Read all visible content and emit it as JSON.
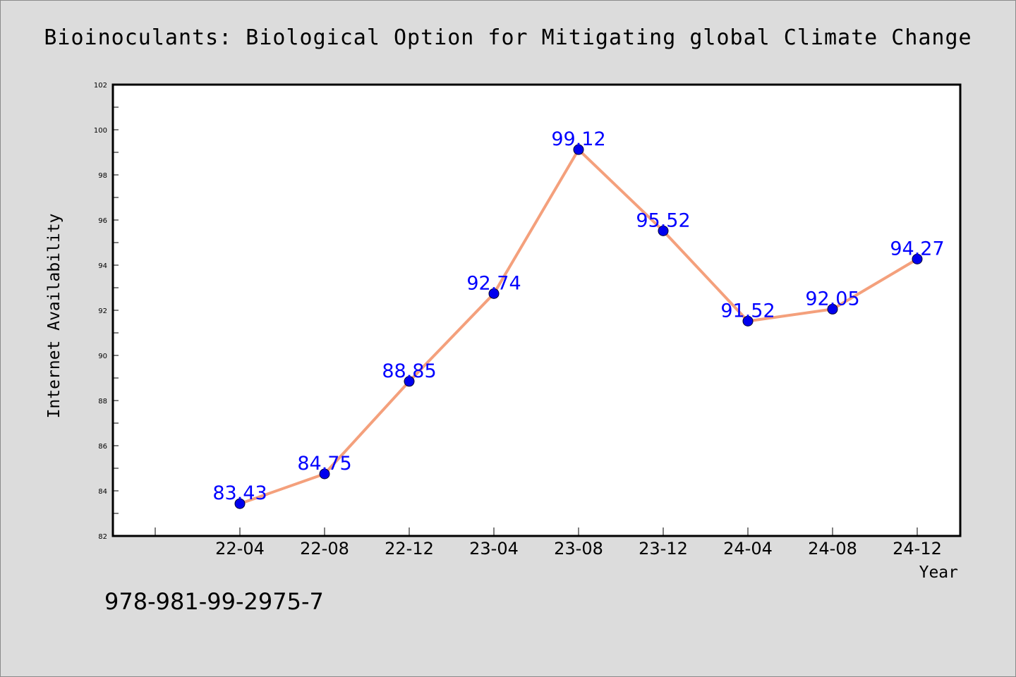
{
  "chart_data": {
    "type": "line",
    "title": "Bioinoculants: Biological Option for Mitigating global Climate Change",
    "xlabel": "Year",
    "ylabel": "Internet Availability",
    "categories": [
      "22-04",
      "22-08",
      "22-12",
      "23-04",
      "23-08",
      "23-12",
      "24-04",
      "24-08",
      "24-12"
    ],
    "series": [
      {
        "values": [
          83.43,
          84.75,
          88.85,
          92.74,
          99.12,
          95.52,
          91.52,
          92.05,
          94.27
        ],
        "labels": [
          "83.43",
          "84.75",
          "88.85",
          "92.74",
          "99.12",
          "95.52",
          "91.52",
          "92.05",
          "94.27"
        ]
      }
    ],
    "ylim": [
      82,
      102
    ],
    "yticks": [
      "82",
      "84",
      "86",
      "88",
      "90",
      "92",
      "94",
      "96",
      "98",
      "100",
      "102"
    ],
    "grid": false,
    "colors": {
      "line": "#f4a07c",
      "marker": "#0000ee",
      "label": "#0000ff",
      "background": "#dcdcdc",
      "plot_background": "#ffffff"
    }
  },
  "footer": {
    "isbn": "978-981-99-2975-7"
  }
}
